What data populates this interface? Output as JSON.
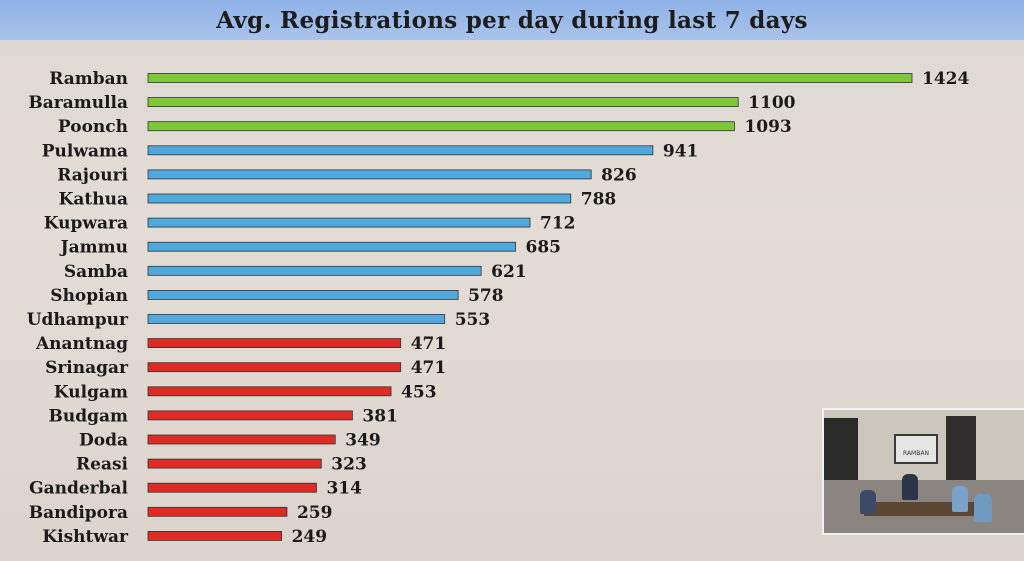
{
  "title": "Avg. Registrations per day during last 7 days",
  "colors": {
    "high": "#7ec83c",
    "mid": "#4fa9df",
    "low": "#e02a24"
  },
  "inset": {
    "board_text": "RAMBAN"
  },
  "chart_data": {
    "type": "bar",
    "orientation": "horizontal",
    "title": "Avg. Registrations per day during last 7 days",
    "categories": [
      "Ramban",
      "Baramulla",
      "Poonch",
      "Pulwama",
      "Rajouri",
      "Kathua",
      "Kupwara",
      "Jammu",
      "Samba",
      "Shopian",
      "Udhampur",
      "Anantnag",
      "Srinagar",
      "Kulgam",
      "Budgam",
      "Doda",
      "Reasi",
      "Ganderbal",
      "Bandipora",
      "Kishtwar"
    ],
    "values": [
      1424,
      1100,
      1093,
      941,
      826,
      788,
      712,
      685,
      621,
      578,
      553,
      471,
      471,
      453,
      381,
      349,
      323,
      314,
      259,
      249
    ],
    "bar_colors": [
      "high",
      "high",
      "high",
      "mid",
      "mid",
      "mid",
      "mid",
      "mid",
      "mid",
      "mid",
      "mid",
      "low",
      "low",
      "low",
      "low",
      "low",
      "low",
      "low",
      "low",
      "low"
    ],
    "xlim": [
      0,
      1424
    ],
    "grid": false,
    "legend": "none"
  }
}
